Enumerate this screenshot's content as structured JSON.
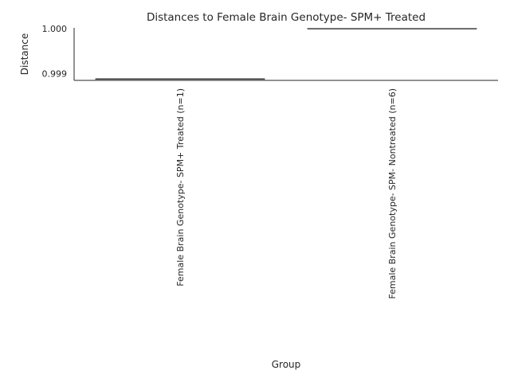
{
  "chart_data": {
    "type": "box",
    "title": "Distances to Female Brain Genotype- SPM+ Treated",
    "xlabel": "Group",
    "ylabel": "Distance",
    "categories": [
      "Female Brain Genotype- SPM+ Treated (n=1)",
      "Female Brain Genotype- SPM- Nontreated (n=6)"
    ],
    "values": [
      0.99888,
      1.0
    ],
    "ylim": [
      0.99885,
      1.00002
    ],
    "yticks": [
      0.999,
      1.0
    ],
    "ytick_labels": [
      "0.999",
      "1.000"
    ],
    "grid": false,
    "colors": {
      "line": "#3a3a3a",
      "axis": "#262626"
    }
  }
}
